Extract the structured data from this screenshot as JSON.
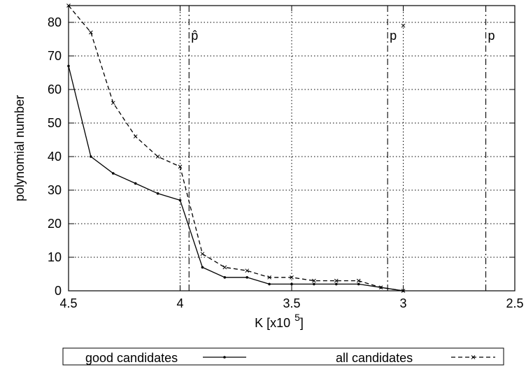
{
  "chart_data": {
    "type": "line",
    "title": "",
    "xlabel": "K [x10",
    "xlabel_exponent": "5",
    "xlabel_close": "]",
    "ylabel": "polynomial number",
    "xlim": [
      4.5,
      2.5
    ],
    "ylim": [
      0,
      85
    ],
    "x_reversed": true,
    "grid": true,
    "legend_position": "bottom",
    "x_ticks": [
      {
        "value": 4.5,
        "label": "4.5"
      },
      {
        "value": 4.0,
        "label": "4"
      },
      {
        "value": 3.5,
        "label": "3.5"
      },
      {
        "value": 3.0,
        "label": "3"
      },
      {
        "value": 2.5,
        "label": "2.5"
      }
    ],
    "y_ticks": [
      {
        "value": 0,
        "label": "0"
      },
      {
        "value": 10,
        "label": "10"
      },
      {
        "value": 20,
        "label": "20"
      },
      {
        "value": 30,
        "label": "30"
      },
      {
        "value": 40,
        "label": "40"
      },
      {
        "value": 50,
        "label": "50"
      },
      {
        "value": 60,
        "label": "60"
      },
      {
        "value": 70,
        "label": "70"
      },
      {
        "value": 80,
        "label": "80"
      }
    ],
    "series": [
      {
        "name": "good candidates",
        "style": "solid",
        "marker": "dot",
        "color": "#000000",
        "x": [
          4.5,
          4.4,
          4.3,
          4.2,
          4.1,
          4.0,
          3.9,
          3.8,
          3.7,
          3.6,
          3.5,
          3.4,
          3.3,
          3.2,
          3.1,
          3.0
        ],
        "y": [
          67,
          40,
          35,
          32,
          29,
          27,
          7,
          4,
          4,
          2,
          2,
          2,
          2,
          2,
          1,
          0
        ]
      },
      {
        "name": "all candidates",
        "style": "dashed",
        "marker": "x",
        "color": "#000000",
        "x": [
          4.5,
          4.4,
          4.3,
          4.2,
          4.1,
          4.0,
          3.9,
          3.8,
          3.7,
          3.6,
          3.5,
          3.4,
          3.3,
          3.2,
          3.1,
          3.0
        ],
        "y": [
          85,
          77,
          56,
          46,
          40,
          37,
          11,
          7,
          6,
          4,
          4,
          3,
          3,
          3,
          1,
          0
        ]
      }
    ],
    "reference_lines": [
      {
        "x": 4.0,
        "style": "dotted",
        "label": ""
      },
      {
        "x": 3.96,
        "style": "dashdot",
        "label": "p̂"
      },
      {
        "x": 3.07,
        "style": "dashdot",
        "label": "p"
      },
      {
        "x": 2.63,
        "style": "dashdot",
        "label": "p"
      }
    ],
    "extra_marks": [
      {
        "x": 3.0,
        "y": 79,
        "marker": "x"
      }
    ]
  }
}
